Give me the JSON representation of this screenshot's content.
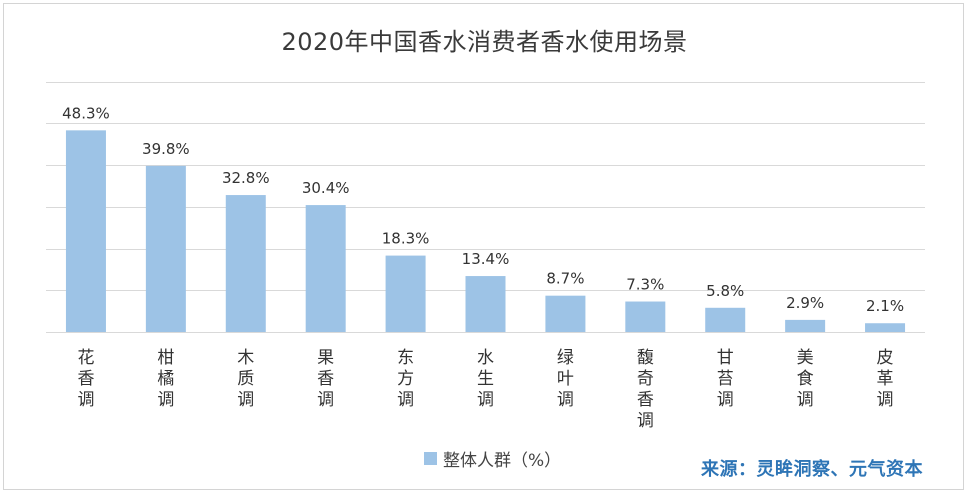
{
  "title": "2020年中国香水消费者香水使用场景",
  "source": "来源：灵眸洞察、元气资本",
  "colors": {
    "bar": "#9dc3e6",
    "grid": "#d9d9d9",
    "source": "#2e75b6",
    "label": "#333333"
  },
  "chart_data": {
    "type": "bar",
    "title": "2020年中国香水消费者香水使用场景",
    "categories": [
      "花香调",
      "柑橘调",
      "木质调",
      "果香调",
      "东方调",
      "水生调",
      "绿叶调",
      "馥奇香调",
      "甘苔调",
      "美食调",
      "皮革调"
    ],
    "series": [
      {
        "name": "整体人群（%）",
        "values": [
          48.3,
          39.8,
          32.8,
          30.4,
          18.3,
          13.4,
          8.7,
          7.3,
          5.8,
          2.9,
          2.1
        ],
        "labels": [
          "48.3%",
          "39.8%",
          "32.8%",
          "30.4%",
          "18.3%",
          "13.4%",
          "8.7%",
          "7.3%",
          "5.8%",
          "2.9%",
          "2.1%"
        ]
      }
    ],
    "ylim": [
      0,
      60
    ],
    "y_gridlines": [
      0,
      10,
      20,
      30,
      40,
      50,
      60
    ],
    "grid": true,
    "legend_position": "bottom",
    "xlabel": "",
    "ylabel": ""
  }
}
